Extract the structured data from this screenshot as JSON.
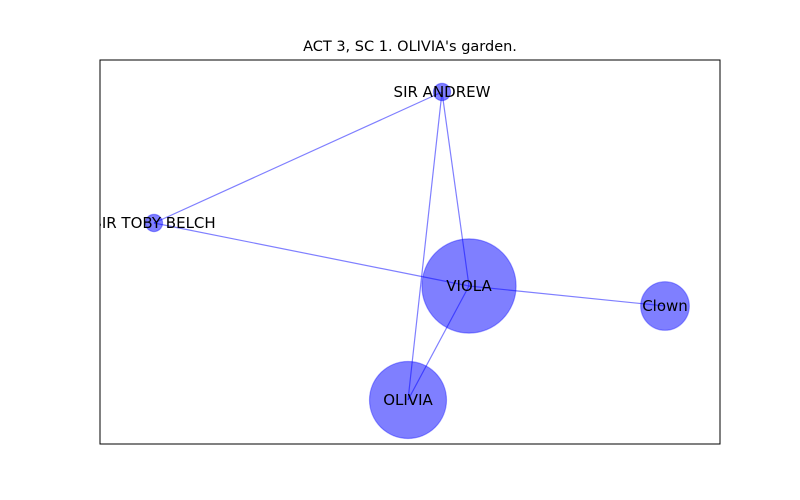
{
  "title": "ACT 3, SC 1. OLIVIA's garden.",
  "colors": {
    "node": "#0000ff",
    "edge": "#0000ff"
  },
  "nodes": [
    {
      "id": "sir-andrew",
      "label": "SIR ANDREW",
      "weight": 1
    },
    {
      "id": "sir-toby-belch",
      "label": "SIR TOBY BELCH",
      "weight": 1
    },
    {
      "id": "viola",
      "label": "VIOLA",
      "weight": 30
    },
    {
      "id": "clown",
      "label": "Clown",
      "weight": 8
    },
    {
      "id": "olivia",
      "label": "OLIVIA",
      "weight": 20
    }
  ],
  "edges": [
    {
      "source": "sir-andrew",
      "target": "sir-toby-belch"
    },
    {
      "source": "sir-andrew",
      "target": "viola"
    },
    {
      "source": "sir-andrew",
      "target": "olivia"
    },
    {
      "source": "sir-toby-belch",
      "target": "viola"
    },
    {
      "source": "viola",
      "target": "clown"
    },
    {
      "source": "viola",
      "target": "olivia"
    }
  ]
}
